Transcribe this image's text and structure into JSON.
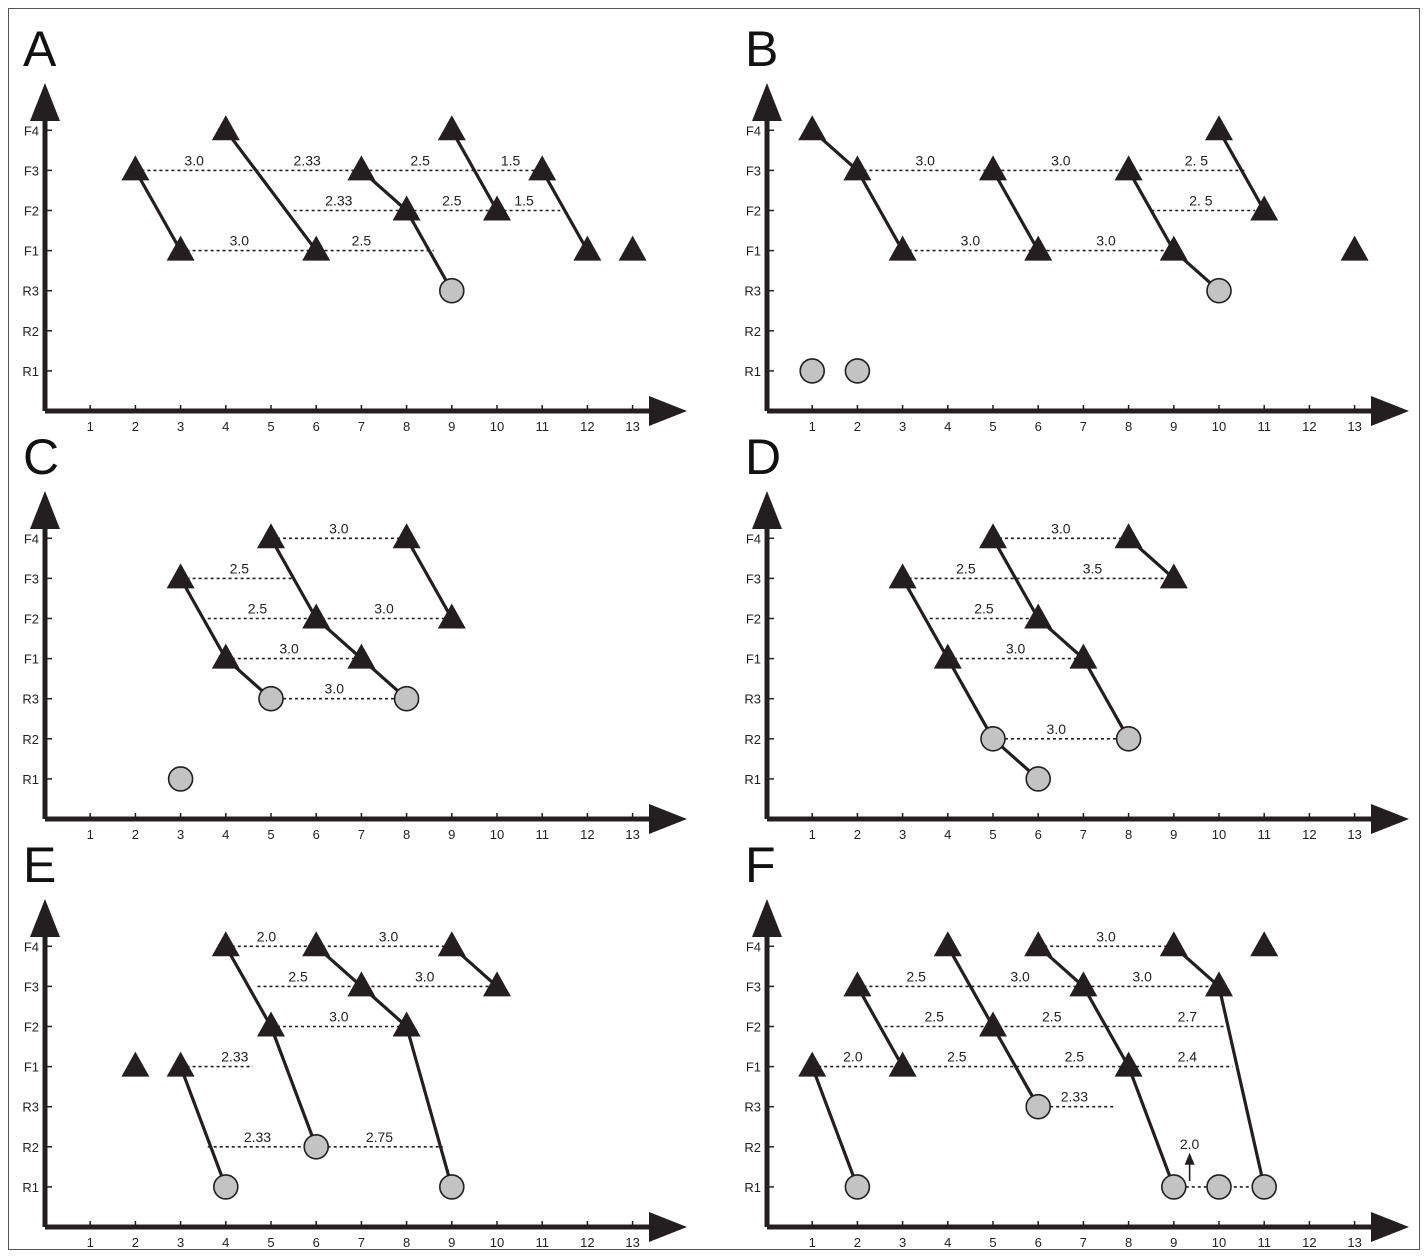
{
  "x_ticks": [
    "1",
    "2",
    "3",
    "4",
    "5",
    "6",
    "7",
    "8",
    "9",
    "10",
    "11",
    "12",
    "13"
  ],
  "y_levels": [
    "R1",
    "R2",
    "R3",
    "F1",
    "F2",
    "F3",
    "F4"
  ],
  "colors": {
    "ink": "#231f20",
    "circle_fill": "#c3c3c3",
    "border": "#555555"
  },
  "panels": [
    {
      "letter": "A",
      "triangles": [
        [
          2,
          "F3"
        ],
        [
          3,
          "F1"
        ],
        [
          4,
          "F4"
        ],
        [
          6,
          "F1"
        ],
        [
          7,
          "F3"
        ],
        [
          8,
          "F2"
        ],
        [
          9,
          "F4"
        ],
        [
          10,
          "F2"
        ],
        [
          11,
          "F3"
        ],
        [
          12,
          "F1"
        ],
        [
          13,
          "F1"
        ]
      ],
      "circles": [
        [
          9,
          "R3"
        ]
      ],
      "lines": [
        [
          [
            2,
            "F3"
          ],
          [
            3,
            "F1"
          ]
        ],
        [
          [
            4,
            "F4"
          ],
          [
            6,
            "F1"
          ]
        ],
        [
          [
            7,
            "F3"
          ],
          [
            8,
            "F2"
          ]
        ],
        [
          [
            8,
            "F2"
          ],
          [
            9,
            "R3"
          ]
        ],
        [
          [
            9,
            "F4"
          ],
          [
            10,
            "F2"
          ]
        ],
        [
          [
            11,
            "F3"
          ],
          [
            12,
            "F1"
          ]
        ]
      ],
      "dashes": [
        {
          "y": "F3",
          "from": 2,
          "to": 11,
          "labels": [
            {
              "x": 3.3,
              "text": "3.0"
            },
            {
              "x": 5.8,
              "text": "2.33"
            },
            {
              "x": 8.3,
              "text": "2.5"
            },
            {
              "x": 10.3,
              "text": "1.5"
            }
          ]
        },
        {
          "y": "F2",
          "from": 5.5,
          "to": 11.4,
          "labels": [
            {
              "x": 6.5,
              "text": "2.33"
            },
            {
              "x": 9.0,
              "text": "2.5"
            },
            {
              "x": 10.6,
              "text": "1.5"
            }
          ]
        },
        {
          "y": "F1",
          "from": 3,
          "to": 8.6,
          "labels": [
            {
              "x": 4.3,
              "text": "3.0"
            },
            {
              "x": 7.0,
              "text": "2.5"
            }
          ]
        }
      ],
      "arrows": []
    },
    {
      "letter": "B",
      "triangles": [
        [
          1,
          "F4"
        ],
        [
          2,
          "F3"
        ],
        [
          3,
          "F1"
        ],
        [
          5,
          "F3"
        ],
        [
          6,
          "F1"
        ],
        [
          8,
          "F3"
        ],
        [
          9,
          "F1"
        ],
        [
          10,
          "F4"
        ],
        [
          11,
          "F2"
        ],
        [
          13,
          "F1"
        ]
      ],
      "circles": [
        [
          1,
          "R1"
        ],
        [
          2,
          "R1"
        ],
        [
          10,
          "R3"
        ]
      ],
      "lines": [
        [
          [
            1,
            "F4"
          ],
          [
            2,
            "F3"
          ]
        ],
        [
          [
            2,
            "F3"
          ],
          [
            3,
            "F1"
          ]
        ],
        [
          [
            5,
            "F3"
          ],
          [
            6,
            "F1"
          ]
        ],
        [
          [
            8,
            "F3"
          ],
          [
            9,
            "F1"
          ]
        ],
        [
          [
            9,
            "F1"
          ],
          [
            10,
            "R3"
          ]
        ],
        [
          [
            10,
            "F4"
          ],
          [
            11,
            "F2"
          ]
        ]
      ],
      "dashes": [
        {
          "y": "F3",
          "from": 2,
          "to": 10.6,
          "labels": [
            {
              "x": 3.5,
              "text": "3.0"
            },
            {
              "x": 6.5,
              "text": "3.0"
            },
            {
              "x": 9.5,
              "text": "2. 5"
            }
          ]
        },
        {
          "y": "F2",
          "from": 8.5,
          "to": 10.8,
          "labels": [
            {
              "x": 9.6,
              "text": "2. 5"
            }
          ]
        },
        {
          "y": "F1",
          "from": 3,
          "to": 9,
          "labels": [
            {
              "x": 4.5,
              "text": "3.0"
            },
            {
              "x": 7.5,
              "text": "3.0"
            }
          ]
        }
      ],
      "arrows": []
    },
    {
      "letter": "C",
      "triangles": [
        [
          3,
          "F3"
        ],
        [
          4,
          "F1"
        ],
        [
          5,
          "F4"
        ],
        [
          6,
          "F2"
        ],
        [
          7,
          "F1"
        ],
        [
          8,
          "F4"
        ],
        [
          9,
          "F2"
        ]
      ],
      "circles": [
        [
          3,
          "R1"
        ],
        [
          5,
          "R3"
        ],
        [
          8,
          "R3"
        ]
      ],
      "lines": [
        [
          [
            3,
            "F3"
          ],
          [
            4,
            "F1"
          ]
        ],
        [
          [
            4,
            "F1"
          ],
          [
            5,
            "R3"
          ]
        ],
        [
          [
            5,
            "F4"
          ],
          [
            6,
            "F2"
          ]
        ],
        [
          [
            6,
            "F2"
          ],
          [
            7,
            "F1"
          ]
        ],
        [
          [
            7,
            "F1"
          ],
          [
            8,
            "R3"
          ]
        ],
        [
          [
            8,
            "F4"
          ],
          [
            9,
            "F2"
          ]
        ]
      ],
      "dashes": [
        {
          "y": "F4",
          "from": 5,
          "to": 8,
          "labels": [
            {
              "x": 6.5,
              "text": "3.0"
            }
          ]
        },
        {
          "y": "F3",
          "from": 3,
          "to": 5.5,
          "labels": [
            {
              "x": 4.3,
              "text": "2.5"
            }
          ]
        },
        {
          "y": "F2",
          "from": 3.6,
          "to": 9,
          "labels": [
            {
              "x": 4.7,
              "text": "2.5"
            },
            {
              "x": 7.5,
              "text": "3.0"
            }
          ]
        },
        {
          "y": "F1",
          "from": 4,
          "to": 7,
          "labels": [
            {
              "x": 5.4,
              "text": "3.0"
            }
          ]
        },
        {
          "y": "R3",
          "from": 5,
          "to": 8,
          "labels": [
            {
              "x": 6.4,
              "text": "3.0"
            }
          ]
        }
      ],
      "arrows": []
    },
    {
      "letter": "D",
      "triangles": [
        [
          3,
          "F3"
        ],
        [
          4,
          "F1"
        ],
        [
          5,
          "F4"
        ],
        [
          6,
          "F2"
        ],
        [
          7,
          "F1"
        ],
        [
          8,
          "F4"
        ],
        [
          9,
          "F3"
        ]
      ],
      "circles": [
        [
          5,
          "R2"
        ],
        [
          6,
          "R1"
        ],
        [
          8,
          "R2"
        ]
      ],
      "lines": [
        [
          [
            3,
            "F3"
          ],
          [
            4,
            "F1"
          ]
        ],
        [
          [
            4,
            "F1"
          ],
          [
            5,
            "R2"
          ]
        ],
        [
          [
            5,
            "R2"
          ],
          [
            6,
            "R1"
          ]
        ],
        [
          [
            5,
            "F4"
          ],
          [
            6,
            "F2"
          ]
        ],
        [
          [
            6,
            "F2"
          ],
          [
            7,
            "F1"
          ]
        ],
        [
          [
            7,
            "F1"
          ],
          [
            8,
            "R2"
          ]
        ],
        [
          [
            8,
            "F4"
          ],
          [
            9,
            "F3"
          ]
        ]
      ],
      "dashes": [
        {
          "y": "F4",
          "from": 5,
          "to": 8,
          "labels": [
            {
              "x": 6.5,
              "text": "3.0"
            }
          ]
        },
        {
          "y": "F3",
          "from": 3,
          "to": 9,
          "labels": [
            {
              "x": 4.4,
              "text": "2.5"
            },
            {
              "x": 7.2,
              "text": "3.5"
            }
          ]
        },
        {
          "y": "F2",
          "from": 3.6,
          "to": 6,
          "labels": [
            {
              "x": 4.8,
              "text": "2.5"
            }
          ]
        },
        {
          "y": "F1",
          "from": 4,
          "to": 7,
          "labels": [
            {
              "x": 5.5,
              "text": "3.0"
            }
          ]
        },
        {
          "y": "R2",
          "from": 5,
          "to": 8,
          "labels": [
            {
              "x": 6.4,
              "text": "3.0"
            }
          ]
        }
      ],
      "arrows": []
    },
    {
      "letter": "E",
      "triangles": [
        [
          2,
          "F1"
        ],
        [
          3,
          "F1"
        ],
        [
          4,
          "F4"
        ],
        [
          5,
          "F2"
        ],
        [
          6,
          "F4"
        ],
        [
          7,
          "F3"
        ],
        [
          8,
          "F2"
        ],
        [
          9,
          "F4"
        ],
        [
          10,
          "F3"
        ]
      ],
      "circles": [
        [
          4,
          "R1"
        ],
        [
          6,
          "R2"
        ],
        [
          9,
          "R1"
        ]
      ],
      "lines": [
        [
          [
            3,
            "F1"
          ],
          [
            4,
            "R1"
          ]
        ],
        [
          [
            4,
            "F4"
          ],
          [
            5,
            "F2"
          ]
        ],
        [
          [
            5,
            "F2"
          ],
          [
            6,
            "R2"
          ]
        ],
        [
          [
            6,
            "F4"
          ],
          [
            7,
            "F3"
          ]
        ],
        [
          [
            7,
            "F3"
          ],
          [
            8,
            "F2"
          ]
        ],
        [
          [
            8,
            "F2"
          ],
          [
            9,
            "R1"
          ]
        ],
        [
          [
            9,
            "F4"
          ],
          [
            10,
            "F3"
          ]
        ]
      ],
      "dashes": [
        {
          "y": "F4",
          "from": 4,
          "to": 9,
          "labels": [
            {
              "x": 4.9,
              "text": "2.0"
            },
            {
              "x": 7.6,
              "text": "3.0"
            }
          ]
        },
        {
          "y": "F3",
          "from": 4.7,
          "to": 10,
          "labels": [
            {
              "x": 5.6,
              "text": "2.5"
            },
            {
              "x": 8.4,
              "text": "3.0"
            }
          ]
        },
        {
          "y": "F2",
          "from": 5,
          "to": 8,
          "labels": [
            {
              "x": 6.5,
              "text": "3.0"
            }
          ]
        },
        {
          "y": "F1",
          "from": 3,
          "to": 4.6,
          "labels": [
            {
              "x": 4.2,
              "text": "2.33"
            }
          ]
        },
        {
          "y": "R2",
          "from": 3.6,
          "to": 8.8,
          "labels": [
            {
              "x": 4.7,
              "text": "2.33"
            },
            {
              "x": 7.4,
              "text": "2.75"
            }
          ]
        }
      ],
      "arrows": []
    },
    {
      "letter": "F",
      "triangles": [
        [
          1,
          "F1"
        ],
        [
          2,
          "F3"
        ],
        [
          3,
          "F1"
        ],
        [
          4,
          "F4"
        ],
        [
          5,
          "F2"
        ],
        [
          6,
          "F4"
        ],
        [
          7,
          "F3"
        ],
        [
          8,
          "F1"
        ],
        [
          9,
          "F4"
        ],
        [
          10,
          "F3"
        ],
        [
          11,
          "F4"
        ]
      ],
      "circles": [
        [
          2,
          "R1"
        ],
        [
          6,
          "R3"
        ],
        [
          9,
          "R1"
        ],
        [
          10,
          "R1"
        ],
        [
          11,
          "R1"
        ]
      ],
      "lines": [
        [
          [
            1,
            "F1"
          ],
          [
            2,
            "R1"
          ]
        ],
        [
          [
            2,
            "F3"
          ],
          [
            3,
            "F1"
          ]
        ],
        [
          [
            4,
            "F4"
          ],
          [
            5,
            "F2"
          ]
        ],
        [
          [
            5,
            "F2"
          ],
          [
            6,
            "R3"
          ]
        ],
        [
          [
            6,
            "F4"
          ],
          [
            7,
            "F3"
          ]
        ],
        [
          [
            7,
            "F3"
          ],
          [
            8,
            "F1"
          ]
        ],
        [
          [
            8,
            "F1"
          ],
          [
            9,
            "R1"
          ]
        ],
        [
          [
            9,
            "F4"
          ],
          [
            10,
            "F3"
          ]
        ],
        [
          [
            10,
            "F3"
          ],
          [
            11,
            "R1"
          ]
        ]
      ],
      "dashes": [
        {
          "y": "F4",
          "from": 6,
          "to": 9,
          "labels": [
            {
              "x": 7.5,
              "text": "3.0"
            }
          ]
        },
        {
          "y": "F3",
          "from": 2,
          "to": 10,
          "labels": [
            {
              "x": 3.3,
              "text": "2.5"
            },
            {
              "x": 5.6,
              "text": "3.0"
            },
            {
              "x": 8.3,
              "text": "3.0"
            }
          ]
        },
        {
          "y": "F2",
          "from": 2.6,
          "to": 10.1,
          "labels": [
            {
              "x": 3.7,
              "text": "2.5"
            },
            {
              "x": 6.3,
              "text": "2.5"
            },
            {
              "x": 9.3,
              "text": "2.7"
            }
          ]
        },
        {
          "y": "F1",
          "from": 1,
          "to": 10.3,
          "labels": [
            {
              "x": 1.9,
              "text": "2.0"
            },
            {
              "x": 4.2,
              "text": "2.5"
            },
            {
              "x": 6.8,
              "text": "2.5"
            },
            {
              "x": 9.3,
              "text": "2.4"
            }
          ]
        },
        {
          "y": "R3",
          "from": 6,
          "to": 7.7,
          "labels": [
            {
              "x": 6.8,
              "text": "2.33"
            }
          ]
        },
        {
          "y": "R1",
          "from": 9,
          "to": 11,
          "labels": []
        }
      ],
      "arrows": [
        {
          "x": 9.35,
          "from": "R1",
          "to": "R2",
          "text": "2.0"
        }
      ]
    }
  ]
}
